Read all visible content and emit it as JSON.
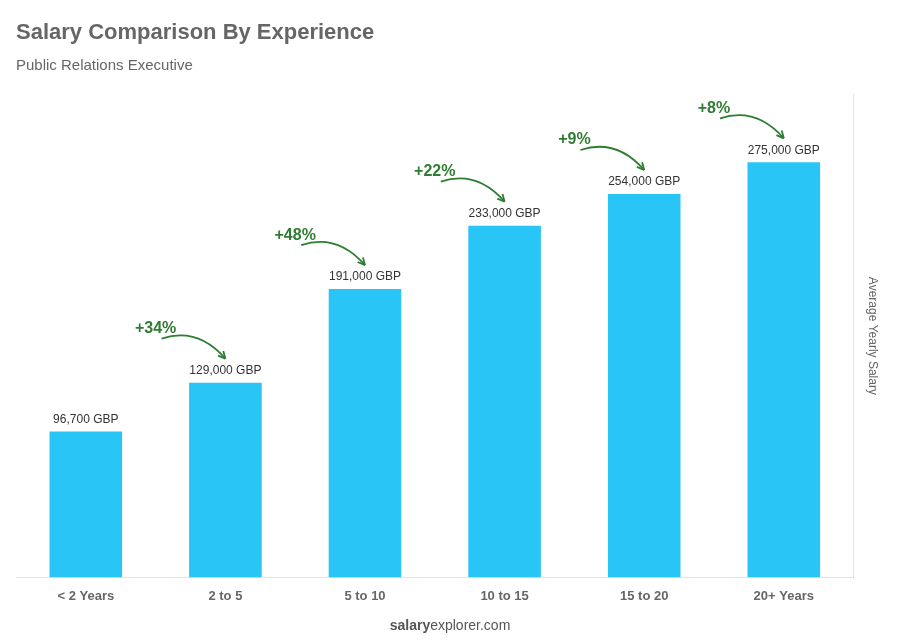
{
  "chart_data": {
    "type": "bar",
    "title": "Salary Comparison By Experience",
    "subtitle": "Public Relations Executive",
    "categories": [
      "< 2 Years",
      "2 to 5",
      "5 to 10",
      "10 to 15",
      "15 to 20",
      "20+ Years"
    ],
    "values": [
      96700,
      129000,
      191000,
      233000,
      254000,
      275000
    ],
    "value_labels": [
      "96,700 GBP",
      "129,000 GBP",
      "191,000 GBP",
      "233,000 GBP",
      "254,000 GBP",
      "275,000 GBP"
    ],
    "data_labels": true,
    "color": "#29c5f6",
    "ylim": [
      0,
      320000
    ],
    "y_label": "Average Yearly Salary",
    "tick_labels": "x",
    "grid": false,
    "annotations": [
      {
        "text": "+34%",
        "from": "< 2 Years",
        "to": "2 to 5"
      },
      {
        "text": "+48%",
        "from": "2 to 5",
        "to": "5 to 10"
      },
      {
        "text": "+22%",
        "from": "5 to 10",
        "to": "10 to 15"
      },
      {
        "text": "+9%",
        "from": "10 to 15",
        "to": "15 to 20"
      },
      {
        "text": "+8%",
        "from": "15 to 20",
        "to": "20+ Years"
      }
    ],
    "watermark": [
      "salary",
      "explorer.com"
    ]
  }
}
